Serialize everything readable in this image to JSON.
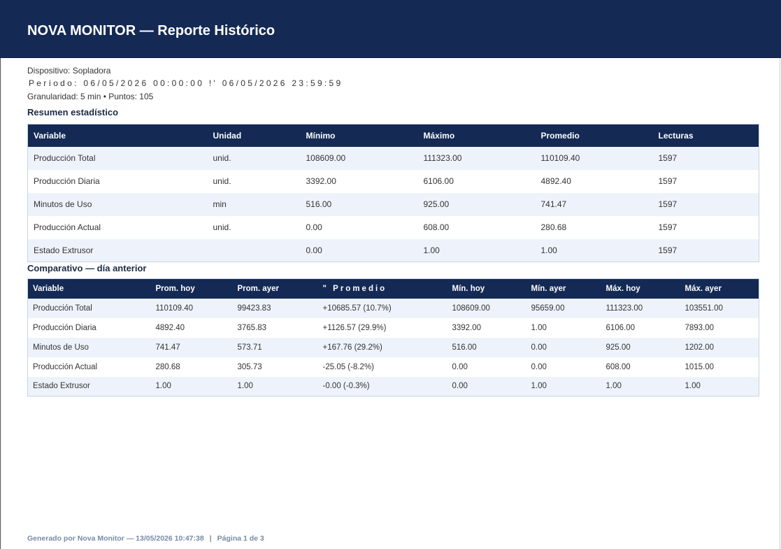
{
  "header": {
    "title": "NOVA MONITOR — Reporte Histórico"
  },
  "meta": {
    "device": "Dispositivo: Sopladora",
    "period": "Período: 06/05/2026 00:00:00 !' 06/05/2026 23:59:59",
    "granularity": "Granularidad: 5 min  •  Puntos: 105"
  },
  "summary": {
    "title": "Resumen estadístico",
    "headers": [
      "Variable",
      "Unidad",
      "Mínimo",
      "Máximo",
      "Promedio",
      "Lecturas"
    ],
    "rows": [
      [
        "Producción Total",
        "unid.",
        "108609.00",
        "111323.00",
        "110109.40",
        "1597"
      ],
      [
        "Producción Diaria",
        "unid.",
        "3392.00",
        "6106.00",
        "4892.40",
        "1597"
      ],
      [
        "Minutos de Uso",
        "min",
        "516.00",
        "925.00",
        "741.47",
        "1597"
      ],
      [
        "Producción Actual",
        "unid.",
        "0.00",
        "608.00",
        "280.68",
        "1597"
      ],
      [
        "Estado Extrusor",
        "",
        "0.00",
        "1.00",
        "1.00",
        "1597"
      ]
    ]
  },
  "comparison": {
    "title": "Comparativo — día anterior",
    "headers": [
      "Variable",
      "Prom. hoy",
      "Prom. ayer",
      "\" Promedio",
      "Mín. hoy",
      "Mín. ayer",
      "Máx. hoy",
      "Máx. ayer"
    ],
    "rows": [
      [
        "Producción Total",
        "110109.40",
        "99423.83",
        "+10685.57 (10.7%)",
        "108609.00",
        "95659.00",
        "111323.00",
        "103551.00"
      ],
      [
        "Producción Diaria",
        "4892.40",
        "3765.83",
        "+1126.57 (29.9%)",
        "3392.00",
        "1.00",
        "6106.00",
        "7893.00"
      ],
      [
        "Minutos de Uso",
        "741.47",
        "573.71",
        "+167.76 (29.2%)",
        "516.00",
        "0.00",
        "925.00",
        "1202.00"
      ],
      [
        "Producción Actual",
        "280.68",
        "305.73",
        "-25.05 (-8.2%)",
        "0.00",
        "0.00",
        "608.00",
        "1015.00"
      ],
      [
        "Estado Extrusor",
        "1.00",
        "1.00",
        "-0.00 (-0.3%)",
        "0.00",
        "1.00",
        "1.00",
        "1.00"
      ]
    ]
  },
  "footer": {
    "generated": "Generado por Nova Monitor — 13/05/2026 10:47:38",
    "separator": "|",
    "page": "Página 1 de 3"
  }
}
